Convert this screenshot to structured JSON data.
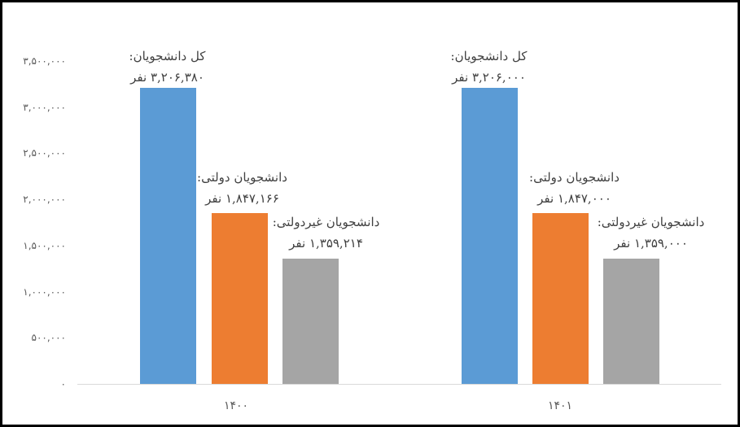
{
  "chart_data": {
    "type": "bar",
    "title": "",
    "xlabel": "",
    "ylabel": "",
    "ylim": [
      0,
      3500000
    ],
    "grid": false,
    "legend": "none",
    "categories": [
      "۱۴۰۰",
      "۱۴۰۱"
    ],
    "series": [
      {
        "name": "کل دانشجویان",
        "color": "#5B9BD5",
        "values": [
          3206380,
          3206000
        ]
      },
      {
        "name": "دانشجویان دولتی",
        "color": "#ED7D31",
        "values": [
          1847166,
          1847000
        ]
      },
      {
        "name": "دانشجویان غیردولتی",
        "color": "#A5A5A5",
        "values": [
          1359214,
          1359000
        ]
      }
    ],
    "y_ticks": [
      "۰",
      "۵۰۰,۰۰۰",
      "۱,۰۰۰,۰۰۰",
      "۱,۵۰۰,۰۰۰",
      "۲,۰۰۰,۰۰۰",
      "۲,۵۰۰,۰۰۰",
      "۳,۰۰۰,۰۰۰",
      "۳,۵۰۰,۰۰۰"
    ],
    "y_tick_values": [
      0,
      500000,
      1000000,
      1500000,
      2000000,
      2500000,
      3000000,
      3500000
    ],
    "annotations": [
      {
        "category": "۱۴۰۰",
        "series": "کل دانشجویان",
        "line1": "کل دانشجویان:",
        "line2": "۳,۲۰۶,۳۸۰ نفر"
      },
      {
        "category": "۱۴۰۰",
        "series": "دانشجویان دولتی",
        "line1": "دانشجویان دولتی:",
        "line2": "۱,۸۴۷,۱۶۶ نفر"
      },
      {
        "category": "۱۴۰۰",
        "series": "دانشجویان غیردولتی",
        "line1": "دانشجویان غیردولتی:",
        "line2": "۱,۳۵۹,۲۱۴ نفر"
      },
      {
        "category": "۱۴۰۱",
        "series": "کل دانشجویان",
        "line1": "کل دانشجویان:",
        "line2": "۳,۲۰۶,۰۰۰ نفر"
      },
      {
        "category": "۱۴۰۱",
        "series": "دانشجویان دولتی",
        "line1": "دانشجویان دولتی:",
        "line2": "۱,۸۴۷,۰۰۰ نفر"
      },
      {
        "category": "۱۴۰۱",
        "series": "دانشجویان غیردولتی",
        "line1": "دانشجویان غیردولتی:",
        "line2": "۱,۳۵۹,۰۰۰ نفر"
      }
    ]
  },
  "colors": {
    "border": "#000000",
    "axis_line": "#d9d9d9",
    "tick_text": "#595959",
    "label_text": "#404040"
  }
}
